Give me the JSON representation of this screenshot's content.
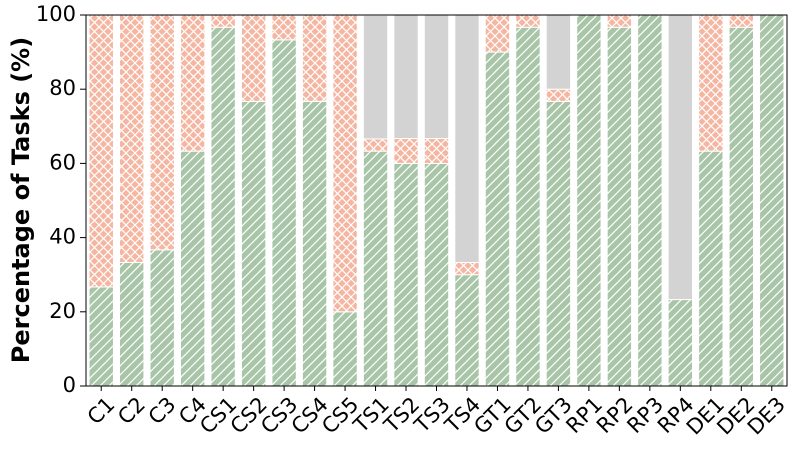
{
  "chart_data": {
    "type": "stacked_bar",
    "y_label": "Percentage of Tasks (%)",
    "categories": [
      "C1",
      "C2",
      "C3",
      "C4",
      "CS1",
      "CS2",
      "CS3",
      "CS4",
      "CS5",
      "TS1",
      "TS2",
      "TS3",
      "TS4",
      "GT1",
      "GT2",
      "GT3",
      "RP1",
      "RP2",
      "RP3",
      "RP4",
      "DE1",
      "DE2",
      "DE3"
    ],
    "series": [
      {
        "color": "#a8c5a8",
        "hatch": "/",
        "values": [
          26.7,
          33.3,
          36.7,
          63.3,
          96.7,
          76.7,
          93.3,
          76.7,
          20,
          63.3,
          60,
          60,
          30,
          90,
          96.7,
          76.7,
          100,
          96.7,
          100,
          23.3,
          63.3,
          96.7,
          100
        ]
      },
      {
        "color": "#f4b5a1",
        "hatch": "x",
        "values": [
          73.3,
          66.7,
          63.3,
          36.7,
          3.3,
          23.3,
          6.7,
          23.3,
          80,
          3.3,
          6.7,
          6.7,
          3.3,
          10,
          3.3,
          3.3,
          0,
          3.3,
          0,
          0,
          36.7,
          3.3,
          0
        ]
      },
      {
        "color": "#d3d3d3",
        "values": [
          0,
          0,
          0,
          0,
          0,
          0,
          0,
          0,
          0,
          33.3,
          33.3,
          33.3,
          66.7,
          0,
          0,
          20,
          0,
          0,
          0,
          76.7,
          0,
          0,
          0
        ]
      }
    ],
    "ylim": [
      0,
      100
    ],
    "yticks": [
      0,
      20,
      40,
      60,
      80,
      100
    ]
  }
}
